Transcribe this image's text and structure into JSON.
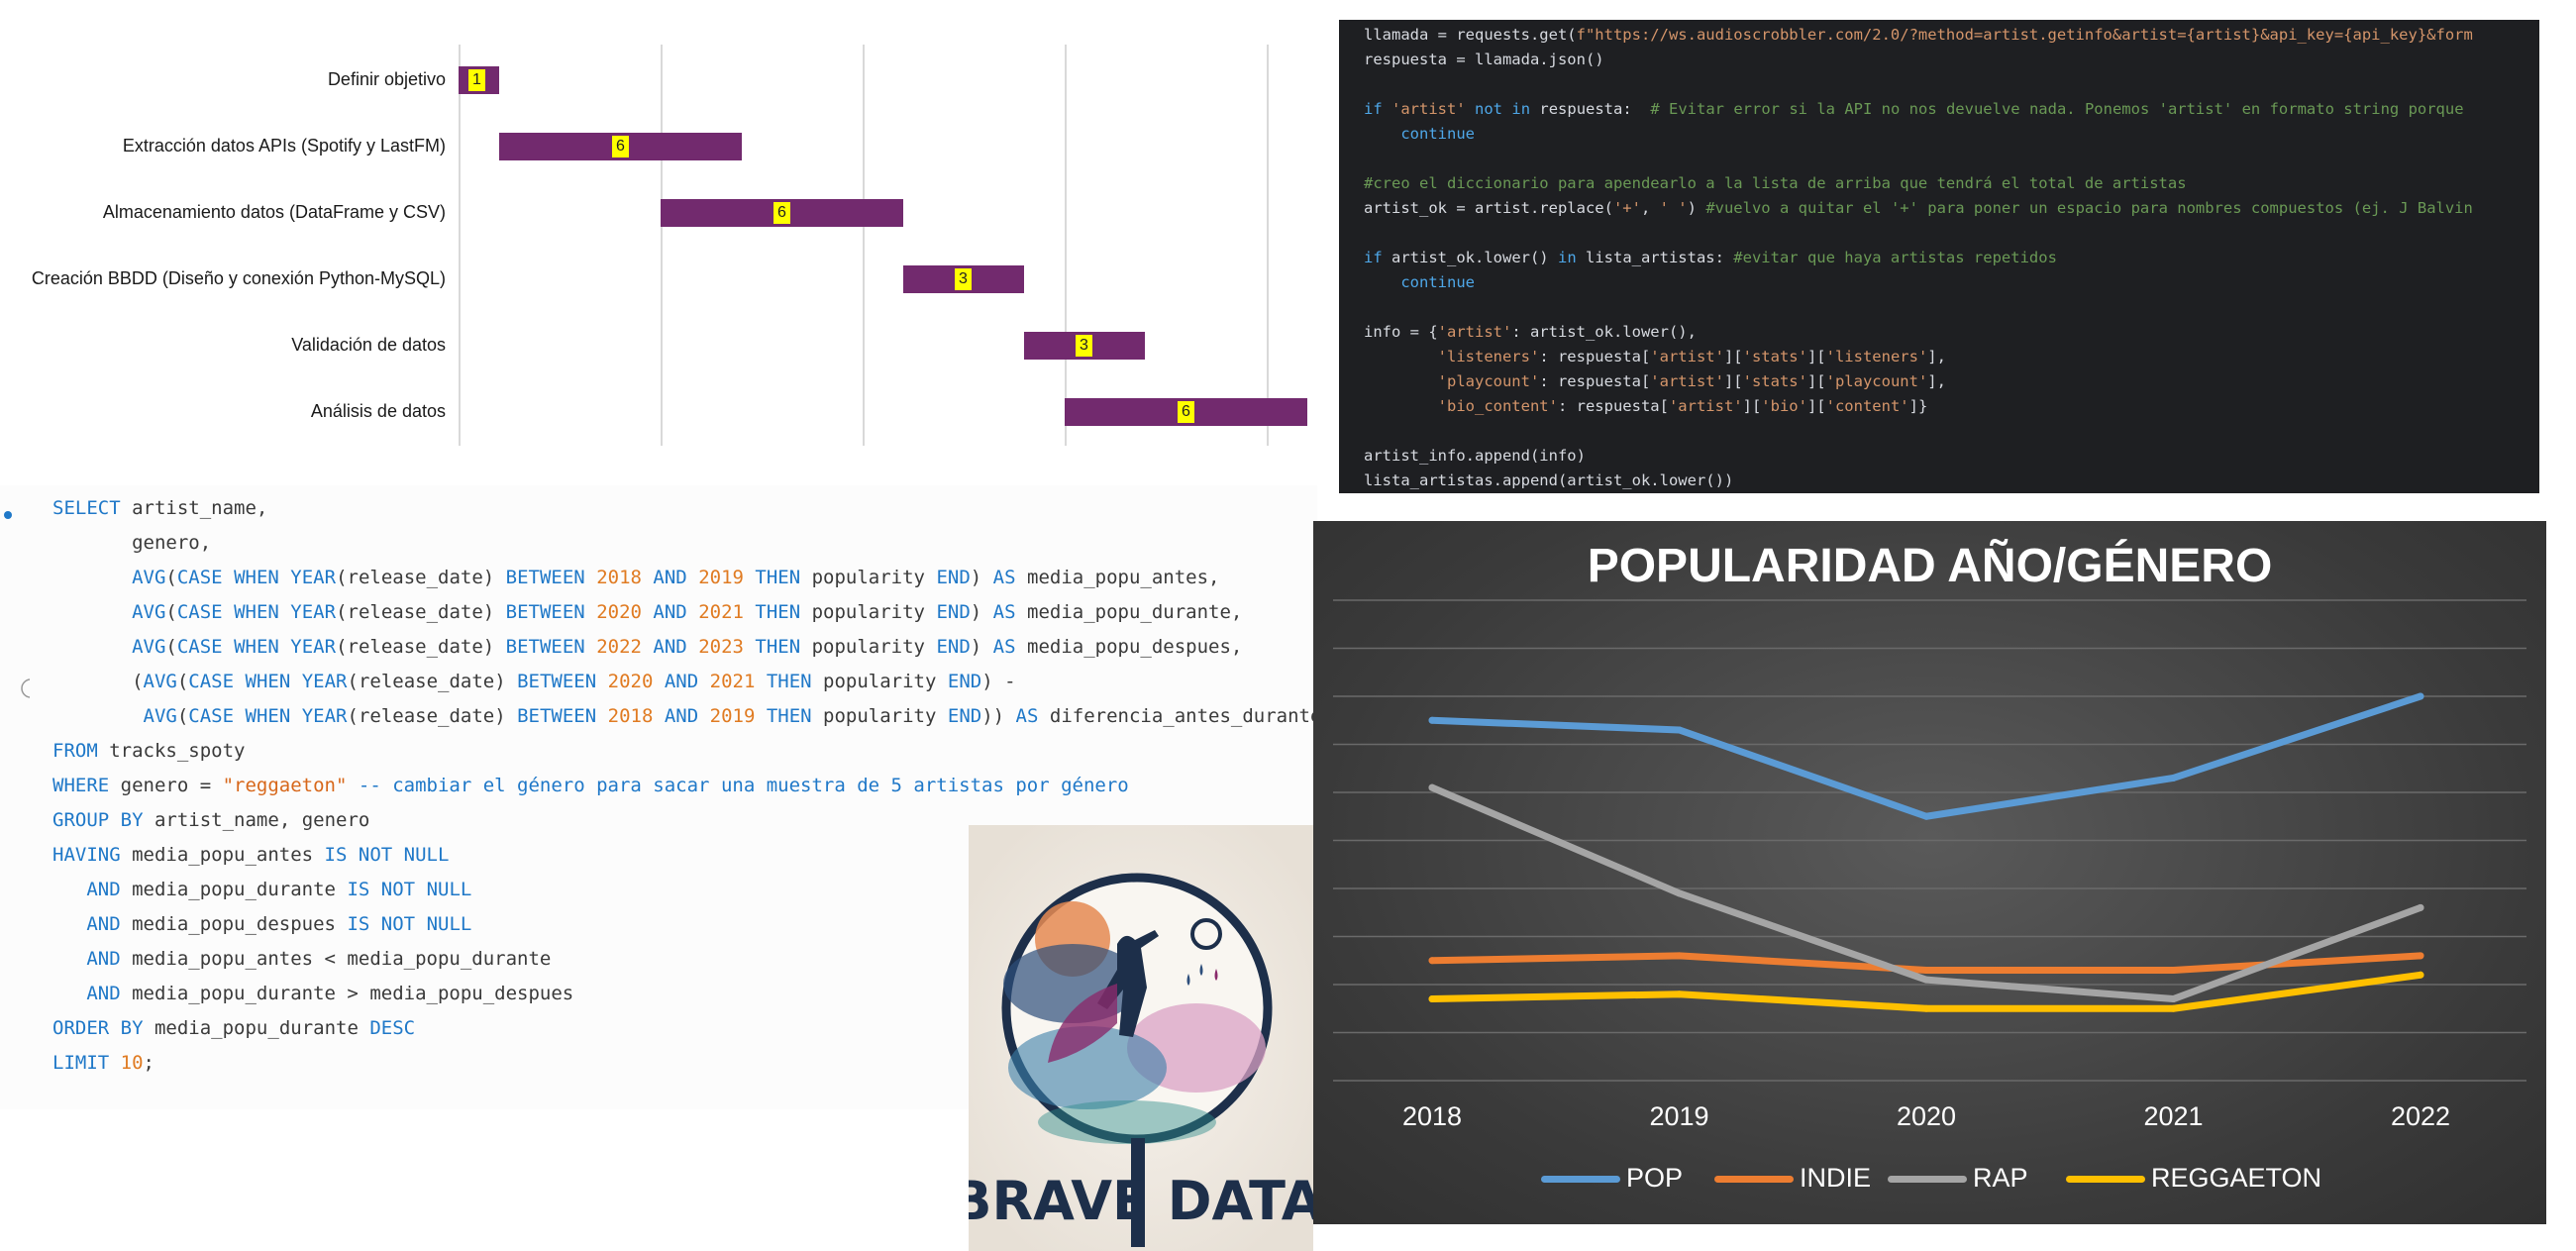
{
  "gantt": {
    "tasks": [
      {
        "name": "Definir objetivo",
        "duration": "1"
      },
      {
        "name": "Extracción datos APIs (Spotify y LastFM)",
        "duration": "6"
      },
      {
        "name": "Almacenamiento datos (DataFrame y CSV)",
        "duration": "6"
      },
      {
        "name": "Creación BBDD (Diseño y conexión Python-MySQL)",
        "duration": "3"
      },
      {
        "name": "Validación de datos",
        "duration": "3"
      },
      {
        "name": "Análisis de datos",
        "duration": "6"
      }
    ],
    "colors": {
      "bar": "#722a6e",
      "label_bg": "#ffff00"
    }
  },
  "python_code": [
    "llamada = requests.get(f\"https://ws.audioscrobbler.com/2.0/?method=artist.getinfo&artist={artist}&api_key={api_key}&form",
    "respuesta = llamada.json()",
    "",
    "if 'artist' not in respuesta:  # Evitar error si la API no nos devuelve nada. Ponemos 'artist' en formato string porque",
    "    continue",
    "",
    "#creo el diccionario para apendearlo a la lista de arriba que tendrá el total de artistas",
    "artist_ok = artist.replace('+', ' ') #vuelvo a quitar el '+' para poner un espacio para nombres compuestos (ej. J Balvin",
    "",
    "if artist_ok.lower() in lista_artistas: #evitar que haya artistas repetidos",
    "    continue",
    "",
    "info = {'artist': artist_ok.lower(),",
    "        'listeners': respuesta['artist']['stats']['listeners'],",
    "        'playcount': respuesta['artist']['stats']['playcount'],",
    "        'bio_content': respuesta['artist']['bio']['content']}",
    "",
    "artist_info.append(info)",
    "lista_artistas.append(artist_ok.lower())"
  ],
  "sql_code": [
    "SELECT artist_name,",
    "       genero,",
    "       AVG(CASE WHEN YEAR(release_date) BETWEEN 2018 AND 2019 THEN popularity END) AS media_popu_antes,",
    "       AVG(CASE WHEN YEAR(release_date) BETWEEN 2020 AND 2021 THEN popularity END) AS media_popu_durante,",
    "       AVG(CASE WHEN YEAR(release_date) BETWEEN 2022 AND 2023 THEN popularity END) AS media_popu_despues,",
    "       (AVG(CASE WHEN YEAR(release_date) BETWEEN 2020 AND 2021 THEN popularity END) -",
    "        AVG(CASE WHEN YEAR(release_date) BETWEEN 2018 AND 2019 THEN popularity END)) AS diferencia_antes_durante",
    "FROM tracks_spoty",
    "WHERE genero = \"reggaeton\" -- cambiar el género para sacar una muestra de 5 artistas por género",
    "GROUP BY artist_name, genero",
    "HAVING media_popu_antes IS NOT NULL",
    "   AND media_popu_durante IS NOT NULL",
    "   AND media_popu_despues IS NOT NULL",
    "   AND media_popu_antes < media_popu_durante",
    "   AND media_popu_durante > media_popu_despues",
    "ORDER BY media_popu_durante DESC",
    "LIMIT 10;"
  ],
  "logo": {
    "text": "BRAVE DATA"
  },
  "chart_data": {
    "type": "line",
    "title": "POPULARIDAD AÑO/GÉNERO",
    "categories": [
      "2018",
      "2019",
      "2020",
      "2021",
      "2022"
    ],
    "ylim": [
      0,
      100
    ],
    "grid": true,
    "legend_position": "bottom",
    "series": [
      {
        "name": "POP",
        "color": "#5b9bd5",
        "values": [
          75,
          73,
          55,
          63,
          80
        ]
      },
      {
        "name": "INDIE",
        "color": "#ed7d31",
        "values": [
          25,
          26,
          23,
          23,
          26
        ]
      },
      {
        "name": "RAP",
        "color": "#a5a5a5",
        "values": [
          61,
          39,
          21,
          17,
          36
        ]
      },
      {
        "name": "REGGAETON",
        "color": "#ffc000",
        "values": [
          17,
          18,
          15,
          15,
          22
        ]
      }
    ]
  }
}
